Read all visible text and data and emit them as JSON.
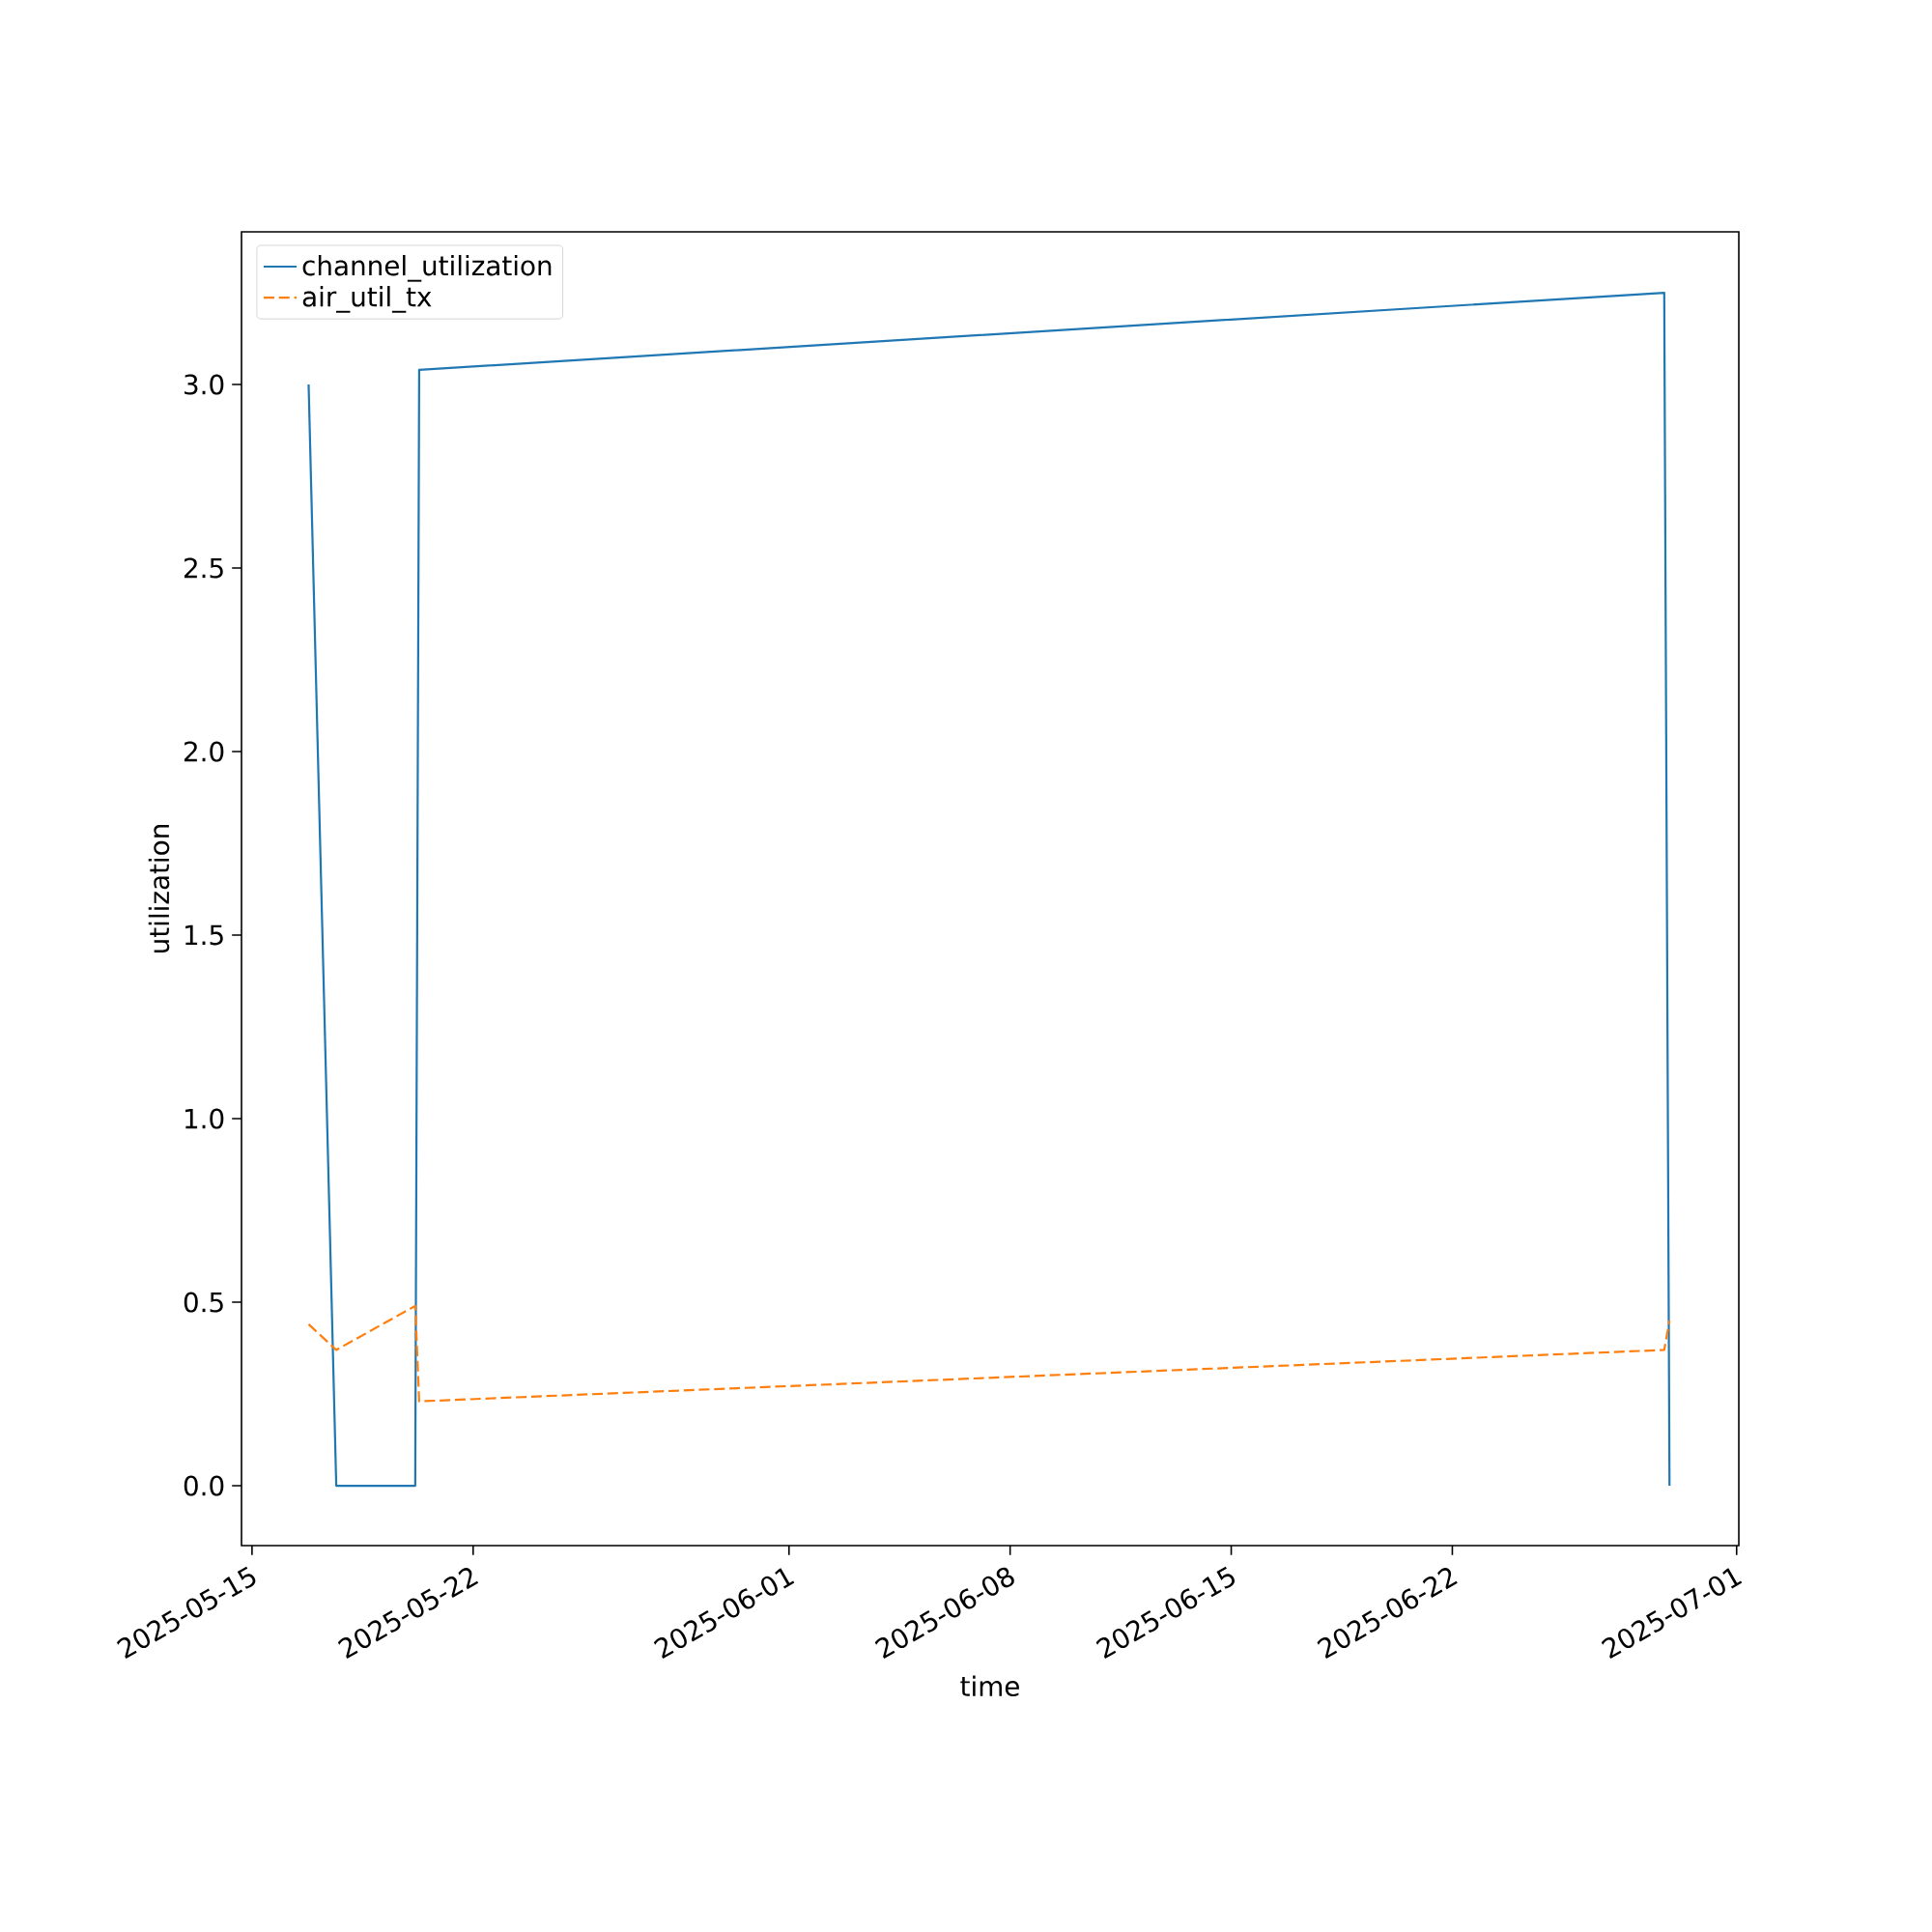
{
  "chart_data": {
    "type": "line",
    "xlabel": "time",
    "ylabel": "utilization",
    "x": [
      "2025-05-16T19:00",
      "2025-05-17T16:00",
      "2025-05-20T04:00",
      "2025-05-20T07:00",
      "2025-06-28T17:00",
      "2025-06-28T21:00"
    ],
    "series": [
      {
        "name": "channel_utilization",
        "color": "#1f77b4",
        "line_style": "solid",
        "values": [
          3.0,
          0,
          0,
          3.04,
          3.25,
          0
        ]
      },
      {
        "name": "air_util_tx",
        "color": "#ff7f0e",
        "line_style": "dashed",
        "values": [
          0.44,
          0.37,
          0.49,
          0.23,
          0.37,
          0.45
        ]
      }
    ],
    "xlim": [
      "2025-05-14T16:00",
      "2025-07-01T01:40"
    ],
    "xticks": [
      "2025-05-15",
      "2025-05-22",
      "2025-06-01",
      "2025-06-08",
      "2025-06-15",
      "2025-06-22",
      "2025-07-01"
    ],
    "ylim": [
      -0.163,
      3.416
    ],
    "yticks": [
      {
        "value": 0,
        "label": "0.0"
      },
      {
        "value": 0.5,
        "label": "0.5"
      },
      {
        "value": 1,
        "label": "1.0"
      },
      {
        "value": 1.5,
        "label": "1.5"
      },
      {
        "value": 2,
        "label": "2.0"
      },
      {
        "value": 2.5,
        "label": "2.5"
      },
      {
        "value": 3,
        "label": "3.0"
      }
    ],
    "legend": "top left"
  }
}
